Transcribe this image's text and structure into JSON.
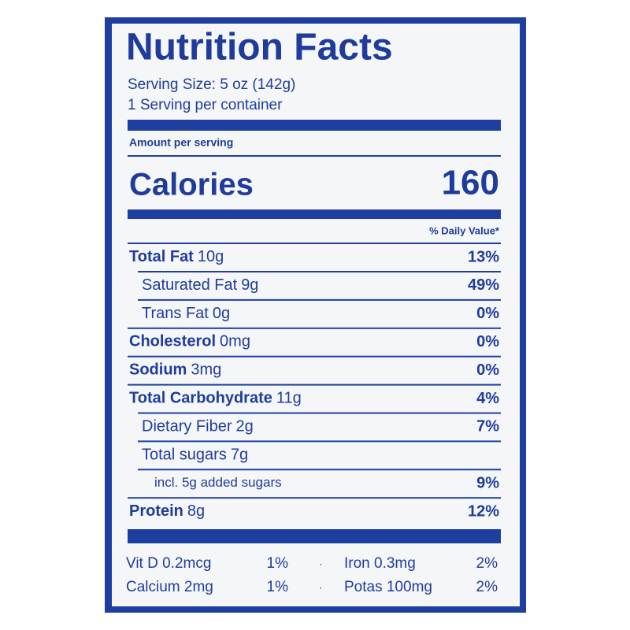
{
  "header": {
    "title": "Nutrition Facts",
    "serving_size": "Serving Size: 5 oz (142g)",
    "servings": "1 Serving per container"
  },
  "amount_per_serving": "Amount per serving",
  "calories": {
    "label": "Calories",
    "value": "160"
  },
  "daily_value_header": "% Daily Value*",
  "rows": [
    {
      "name": "Total Fat",
      "amount": "10g",
      "dv": "13%"
    },
    {
      "name": "Saturated Fat",
      "amount": "9g",
      "dv": "49%"
    },
    {
      "name": "Trans Fat",
      "amount": "0g",
      "dv": "0%"
    },
    {
      "name": "Cholesterol",
      "amount": "0mg",
      "dv": "0%"
    },
    {
      "name": "Sodium",
      "amount": "3mg",
      "dv": "0%"
    },
    {
      "name": "Total Carbohydrate",
      "amount": "11g",
      "dv": "4%"
    },
    {
      "name": "Dietary Fiber",
      "amount": "2g",
      "dv": "7%"
    },
    {
      "name": "Total sugars",
      "amount": "7g"
    },
    {
      "name": "incl. 5g added sugars",
      "dv": "9%"
    },
    {
      "name": "Protein",
      "amount": "8g",
      "dv": "12%"
    }
  ],
  "minerals": [
    [
      {
        "name": "Vit D 0.2mcg",
        "dv": "1%"
      },
      {
        "name": "Iron 0.3mg",
        "dv": "2%"
      }
    ],
    [
      {
        "name": "Calcium 2mg",
        "dv": "1%"
      },
      {
        "name": "Potas 100mg",
        "dv": "2%"
      }
    ]
  ]
}
